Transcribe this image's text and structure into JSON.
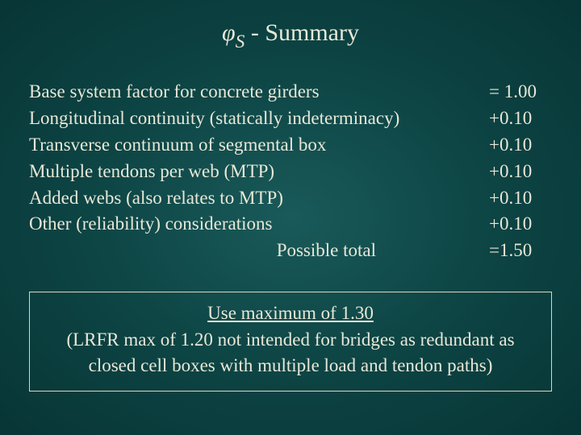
{
  "title": {
    "symbol": "φ",
    "subscript": "S",
    "rest": " - Summary"
  },
  "rows": [
    {
      "label": "Base system factor for concrete girders",
      "value": "= 1.00"
    },
    {
      "label": "Longitudinal continuity (statically indeterminacy)",
      "value": "+0.10"
    },
    {
      "label": "Transverse continuum of segmental box",
      "value": "+0.10"
    },
    {
      "label": "Multiple tendons per web (MTP)",
      "value": "+0.10"
    },
    {
      "label": "Added webs (also relates to MTP)",
      "value": "+0.10"
    },
    {
      "label": "Other (reliability) considerations",
      "value": "+0.10"
    }
  ],
  "total": {
    "label": "Possible total",
    "value": "=1.50"
  },
  "note": {
    "headline": "Use maximum of 1.30",
    "body": "(LRFR max of 1.20 not intended for bridges as redundant as closed cell boxes with multiple load and tendon paths)"
  },
  "colors": {
    "text": "#e8e8d8",
    "border": "#d8d8c0",
    "bg_center": "#1a5a5a",
    "bg_edge": "#083535"
  }
}
